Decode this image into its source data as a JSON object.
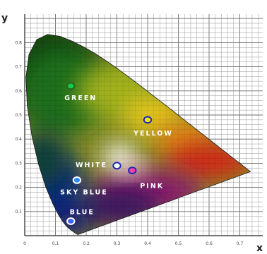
{
  "chart_data": {
    "type": "scatter",
    "title": "",
    "xlabel": "x",
    "ylabel": "y",
    "xlim": [
      0,
      0.8
    ],
    "ylim": [
      0,
      0.9
    ],
    "x_ticks": [
      "0",
      "0.1",
      "0.2",
      "0.3",
      "0.4",
      "0.5",
      "0.6",
      "0.7"
    ],
    "y_ticks": [
      "0.1",
      "0.2",
      "0.3",
      "0.4",
      "0.5",
      "0.6",
      "0.7",
      "0.8"
    ],
    "grid": true,
    "series": [
      {
        "points": [
          {
            "x": 0.15,
            "y": 0.06,
            "label": "BLUE",
            "marker_color": "#3a64ff",
            "ring_color": "#ffffff"
          },
          {
            "x": 0.17,
            "y": 0.23,
            "label": "SKY BLUE",
            "marker_color": "#2f8cff",
            "ring_color": "#ffffff"
          },
          {
            "x": 0.3,
            "y": 0.29,
            "label": "WHITE",
            "marker_color": "#ffffff",
            "ring_color": "#1b2ab8"
          },
          {
            "x": 0.35,
            "y": 0.27,
            "label": "PINK",
            "marker_color": "#ff3fa4",
            "ring_color": "#1b2ab8"
          },
          {
            "x": 0.15,
            "y": 0.62,
            "label": "GREEN",
            "marker_color": "#18c84a",
            "ring_color": "#1f6a1f"
          },
          {
            "x": 0.4,
            "y": 0.48,
            "label": "YELLOW",
            "marker_color": "#f2e21c",
            "ring_color": "#1b2ab8"
          }
        ]
      }
    ]
  }
}
